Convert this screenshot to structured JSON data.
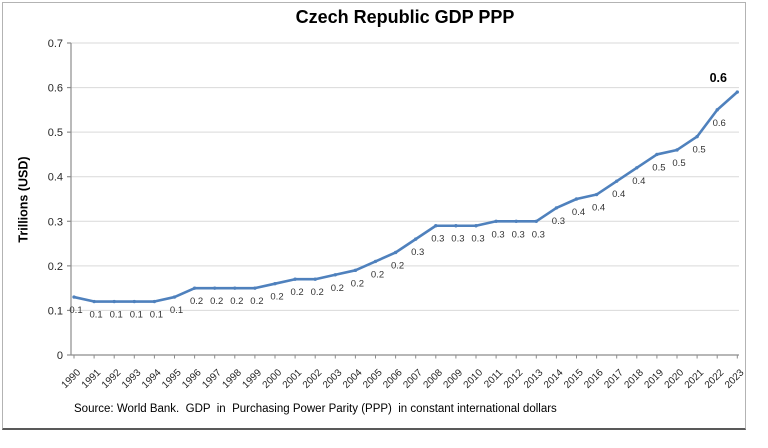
{
  "chart": {
    "title": "Czech Republic GDP PPP",
    "y_axis_title": "Trillions (USD)",
    "source_note": "Source: World Bank.  GDP  in  Purchasing Power Parity (PPP)  in constant international dollars"
  },
  "chart_data": {
    "type": "line",
    "title": "Czech Republic GDP PPP",
    "xlabel": "",
    "ylabel": "Trillions (USD)",
    "source_note": "Source: World Bank.  GDP  in  Purchasing Power Parity (PPP)  in constant international dollars",
    "categories": [
      "1990",
      "1991",
      "1992",
      "1993",
      "1994",
      "1995",
      "1996",
      "1997",
      "1998",
      "1999",
      "2000",
      "2001",
      "2002",
      "2003",
      "2004",
      "2005",
      "2006",
      "2007",
      "2008",
      "2009",
      "2010",
      "2011",
      "2012",
      "2013",
      "2014",
      "2015",
      "2016",
      "2017",
      "2018",
      "2019",
      "2020",
      "2021",
      "2022",
      "2023"
    ],
    "values": [
      0.13,
      0.12,
      0.12,
      0.12,
      0.12,
      0.13,
      0.15,
      0.15,
      0.15,
      0.15,
      0.16,
      0.17,
      0.17,
      0.18,
      0.19,
      0.21,
      0.23,
      0.26,
      0.29,
      0.29,
      0.29,
      0.3,
      0.3,
      0.3,
      0.33,
      0.35,
      0.36,
      0.39,
      0.42,
      0.45,
      0.46,
      0.49,
      0.55,
      0.59
    ],
    "point_labels": [
      "0.1",
      "0.1",
      "0.1",
      "0.1",
      "0.1",
      "0.1",
      "0.2",
      "0.2",
      "0.2",
      "0.2",
      "0.2",
      "0.2",
      "0.2",
      "0.2",
      "0.2",
      "0.2",
      "0.2",
      "0.3",
      "0.3",
      "0.3",
      "0.3",
      "0.3",
      "0.3",
      "0.3",
      "0.3",
      "0.4",
      "0.4",
      "0.4",
      "0.4",
      "0.5",
      "0.5",
      "0.5",
      "0.6",
      "0.6"
    ],
    "final_point_label": {
      "text": "0.6",
      "bold": true
    },
    "ylim": [
      0,
      0.7
    ],
    "ytick_labels": [
      "0",
      "0.1",
      "0.2",
      "0.3",
      "0.4",
      "0.5",
      "0.6",
      "0.7"
    ],
    "grid": "horizontal",
    "legend": "none",
    "colors": {
      "line": "#4F81BD",
      "marker": "#4F81BD",
      "gridline": "#D9D9D9",
      "axis": "#8C8C8C",
      "tick_text": "#262626",
      "data_label_text": "#333333",
      "final_label_text": "#000000",
      "title_text": "#000000",
      "frame_border": "#B3B3B3",
      "frame_border_bottom": "#595959",
      "background": "#FFFFFF"
    }
  }
}
